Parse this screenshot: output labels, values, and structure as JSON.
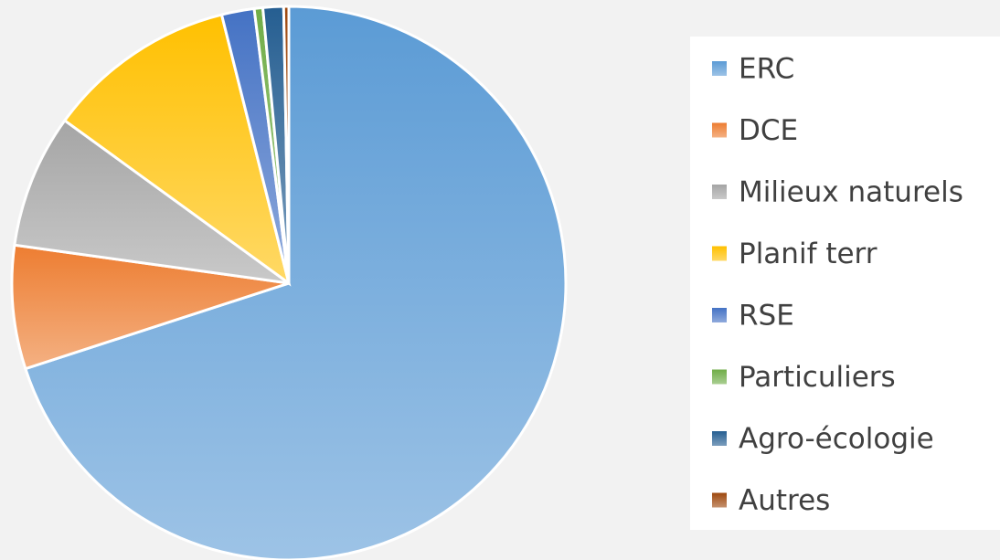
{
  "chart_data": {
    "type": "pie",
    "categories": [
      "ERC",
      "DCE",
      "Milieux naturels",
      "Planif terr",
      "RSE",
      "Particuliers",
      "Agro-écologie",
      "Autres"
    ],
    "values": [
      70.0,
      7.2,
      7.8,
      11.1,
      1.9,
      0.5,
      1.2,
      0.3
    ],
    "colors": [
      "#5b9bd5",
      "#ed7d31",
      "#a5a5a5",
      "#ffc000",
      "#4472c4",
      "#70ad47",
      "#255e91",
      "#9e480e"
    ],
    "legend": "right"
  }
}
